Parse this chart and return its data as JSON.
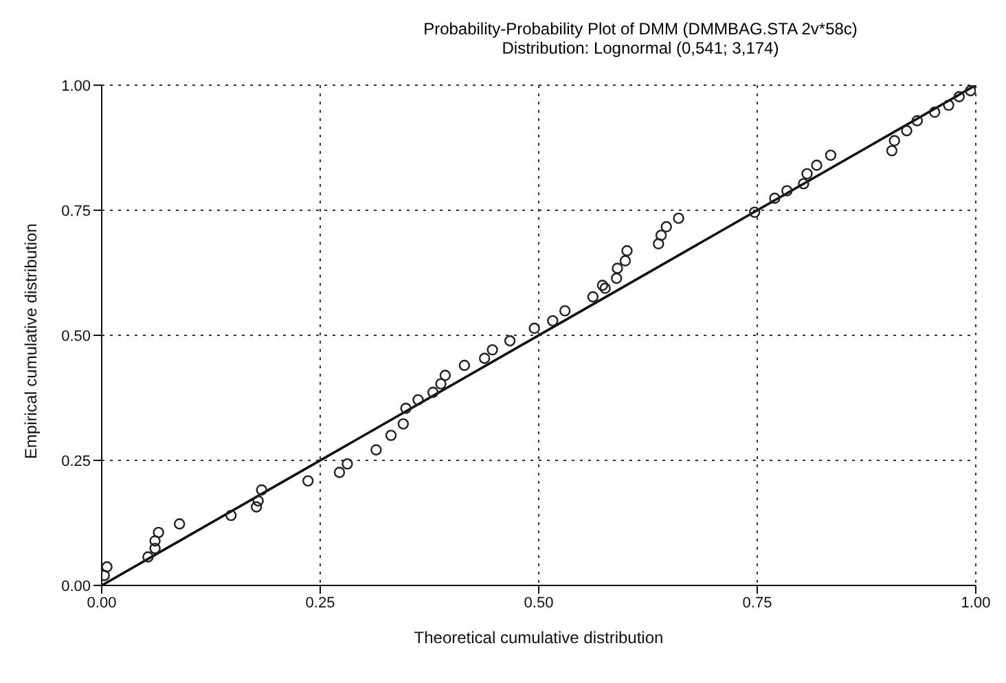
{
  "chart_data": {
    "type": "scatter",
    "title": "Probability-Probability Plot of DMM (DMMBAG.STA 2v*58c)",
    "subtitle": "Distribution: Lognormal (0,541; 3,174)",
    "xlabel": "Theoretical cumulative distribution",
    "ylabel": "Empirical cumulative distribution",
    "xlim": [
      0,
      1
    ],
    "ylim": [
      0,
      1
    ],
    "xticks": [
      {
        "value": 0,
        "label": "0.00"
      },
      {
        "value": 0.25,
        "label": "0.25"
      },
      {
        "value": 0.5,
        "label": "0.50"
      },
      {
        "value": 0.75,
        "label": "0.75"
      },
      {
        "value": 1,
        "label": "1.00"
      }
    ],
    "yticks": [
      {
        "value": 0,
        "label": "0.00"
      },
      {
        "value": 0.25,
        "label": "0.25"
      },
      {
        "value": 0.5,
        "label": "0.50"
      },
      {
        "value": 0.75,
        "label": "0.75"
      },
      {
        "value": 1,
        "label": "1.00"
      }
    ],
    "grid": true,
    "legend": false,
    "series": [
      {
        "marker": "circle",
        "color": "#222222",
        "x": [
          0.003,
          0.006,
          0.053,
          0.061,
          0.061,
          0.065,
          0.089,
          0.148,
          0.177,
          0.179,
          0.183,
          0.236,
          0.272,
          0.281,
          0.314,
          0.331,
          0.345,
          0.348,
          0.362,
          0.379,
          0.388,
          0.393,
          0.415,
          0.438,
          0.447,
          0.467,
          0.495,
          0.516,
          0.53,
          0.562,
          0.573,
          0.576,
          0.589,
          0.59,
          0.599,
          0.601,
          0.637,
          0.64,
          0.646,
          0.66,
          0.747,
          0.77,
          0.784,
          0.803,
          0.807,
          0.818,
          0.834,
          0.904,
          0.907,
          0.921,
          0.933,
          0.953,
          0.969,
          0.981,
          0.994
        ],
        "values": [
          0.02,
          0.037,
          0.057,
          0.074,
          0.089,
          0.106,
          0.123,
          0.14,
          0.157,
          0.169,
          0.191,
          0.209,
          0.226,
          0.243,
          0.271,
          0.3,
          0.323,
          0.354,
          0.371,
          0.386,
          0.403,
          0.42,
          0.44,
          0.454,
          0.471,
          0.489,
          0.514,
          0.529,
          0.549,
          0.577,
          0.6,
          0.594,
          0.614,
          0.634,
          0.649,
          0.669,
          0.683,
          0.7,
          0.717,
          0.734,
          0.746,
          0.774,
          0.789,
          0.803,
          0.823,
          0.84,
          0.86,
          0.869,
          0.889,
          0.909,
          0.929,
          0.946,
          0.96,
          0.977,
          0.989
        ]
      },
      {
        "type": "line",
        "marker": "none",
        "color": "#111111",
        "x": [
          0,
          1
        ],
        "values": [
          0,
          1
        ]
      }
    ]
  }
}
